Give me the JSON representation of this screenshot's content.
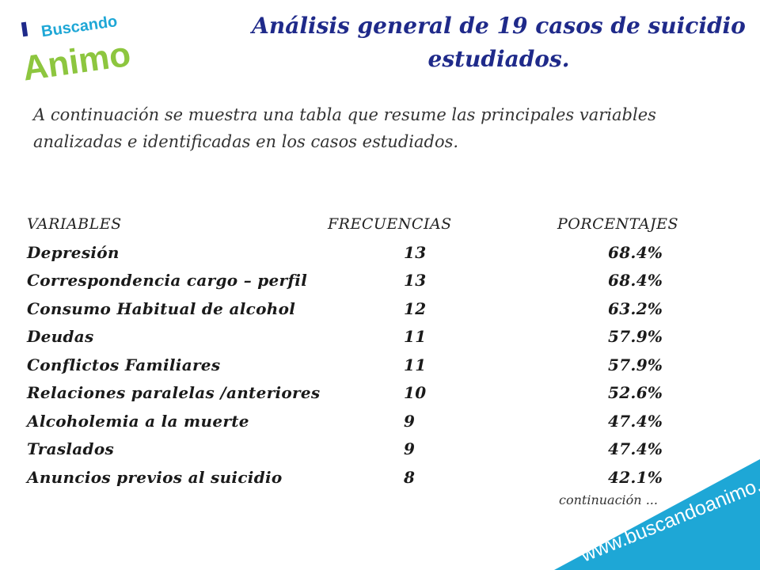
{
  "logo": {
    "line1": "Buscando",
    "line2": "Animo"
  },
  "title": "Análisis general de 19 casos de suicidio estudiados.",
  "intro": "A continuación se muestra una tabla que resume las principales variables analizadas e identificadas en los casos estudiados.",
  "table": {
    "headers": {
      "variable": "VARIABLES",
      "frequency": "FRECUENCIAS",
      "percentage": "PORCENTAJES"
    },
    "rows": [
      {
        "variable": "Depresión",
        "frequency": "13",
        "percentage": "68.4%"
      },
      {
        "variable": "Correspondencia cargo – perfil",
        "frequency": "13",
        "percentage": "68.4%"
      },
      {
        "variable": "Consumo Habitual de alcohol",
        "frequency": "12",
        "percentage": "63.2%"
      },
      {
        "variable": "Deudas",
        "frequency": "11",
        "percentage": "57.9%"
      },
      {
        "variable": "Conflictos  Familiares",
        "frequency": "11",
        "percentage": "57.9%"
      },
      {
        "variable": "Relaciones paralelas /anteriores",
        "frequency": "10",
        "percentage": "52.6%"
      },
      {
        "variable": "Alcoholemia a la muerte",
        "frequency": "9",
        "percentage": "47.4%"
      },
      {
        "variable": "Traslados",
        "frequency": "9",
        "percentage": "47.4%"
      },
      {
        "variable": "Anuncios previos  al suicidio",
        "frequency": "8",
        "percentage": "42.1%"
      }
    ]
  },
  "continuation": "continuación ...",
  "banner": {
    "url": "www.buscandoanimo.org",
    "color": "#1ea7d6"
  },
  "colors": {
    "title": "#1f2a8a",
    "logo_blue": "#1ea7d6",
    "logo_dark": "#1f2a8a",
    "logo_green": "#8dc63f"
  }
}
